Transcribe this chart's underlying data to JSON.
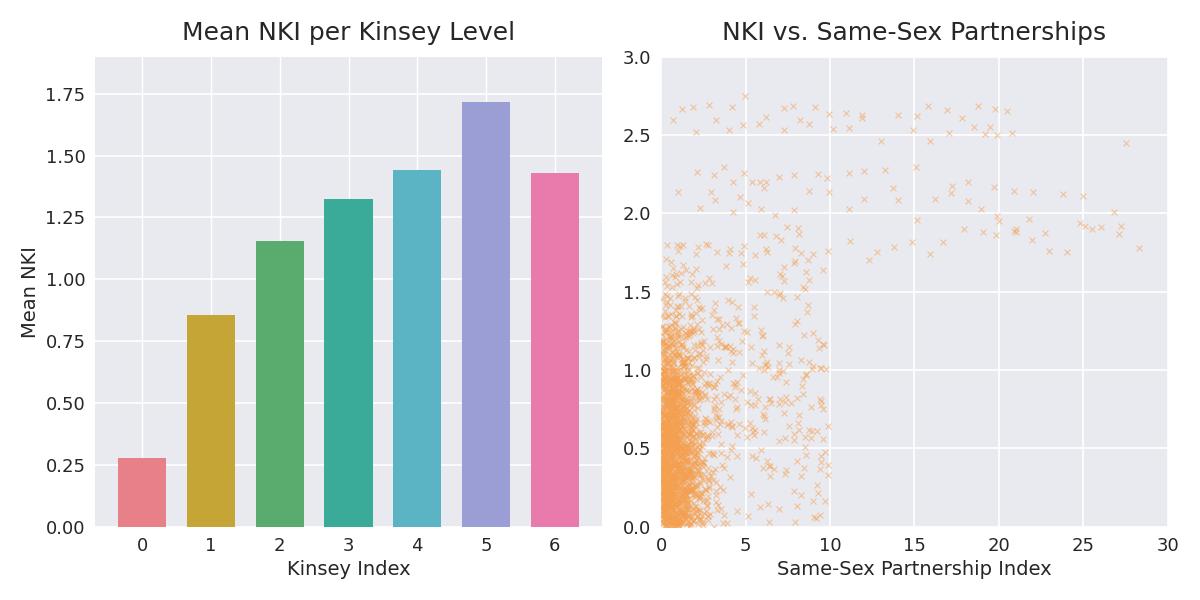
{
  "bar_categories": [
    0,
    1,
    2,
    3,
    4,
    5,
    6
  ],
  "bar_values": [
    0.28,
    0.855,
    1.155,
    1.325,
    1.44,
    1.715,
    1.43
  ],
  "bar_colors": [
    "#e8808a",
    "#c4a535",
    "#5aab6e",
    "#3aab98",
    "#5ab4c4",
    "#9b9ed4",
    "#e87aac"
  ],
  "bar_title": "Mean NKI per Kinsey Level",
  "bar_xlabel": "Kinsey Index",
  "bar_ylabel": "Mean NKI",
  "bar_ylim": [
    0,
    1.9
  ],
  "scatter_title": "NKI vs. Same-Sex Partnerships",
  "scatter_xlabel": "Same-Sex Partnership Index",
  "scatter_xlim": [
    0,
    30
  ],
  "scatter_ylim": [
    0,
    3.0
  ],
  "scatter_color": "#f5a050",
  "scatter_alpha": 0.55,
  "background_color": "#e8eaf0",
  "fig_facecolor": "#ffffff",
  "title_fontsize": 18,
  "label_fontsize": 14,
  "tick_fontsize": 13
}
